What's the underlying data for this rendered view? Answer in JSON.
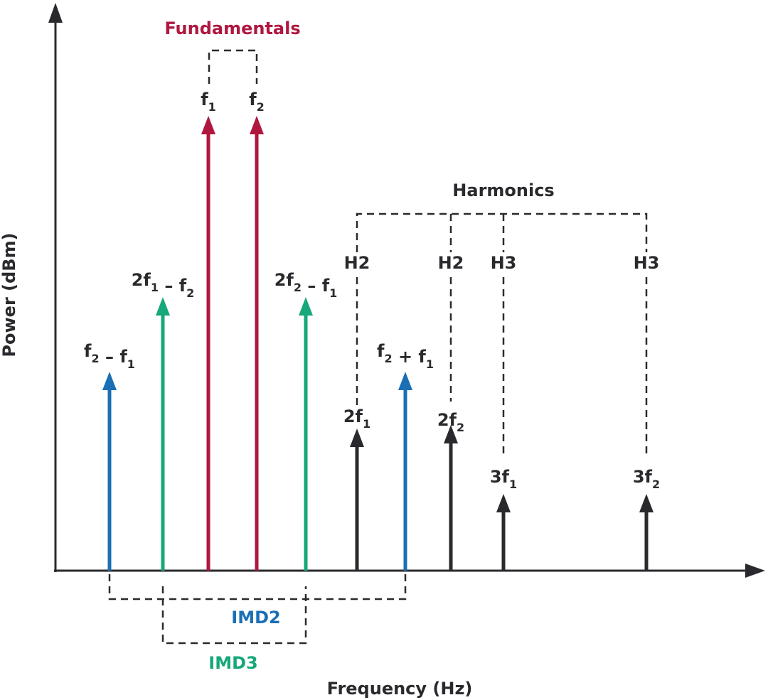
{
  "axes": {
    "y_label": "Power (dBm)",
    "x_label": "Frequency (Hz)"
  },
  "groups": {
    "fundamentals": "Fundamentals",
    "harmonics": "Harmonics",
    "imd2": "IMD2",
    "imd3": "IMD3"
  },
  "harmonic_tags": [
    "H2",
    "H2",
    "H3",
    "H3"
  ],
  "tones": [
    {
      "label": [
        [
          "f",
          "2"
        ],
        [
          " – f",
          "1"
        ]
      ]
    },
    {
      "label": [
        [
          "2f",
          "1"
        ],
        [
          " – f",
          "2"
        ]
      ]
    },
    {
      "label": [
        [
          "f",
          "1"
        ]
      ]
    },
    {
      "label": [
        [
          "f",
          "2"
        ]
      ]
    },
    {
      "label": [
        [
          "2f",
          "2"
        ],
        [
          " – f",
          "1"
        ]
      ]
    },
    {
      "label": [
        [
          "2f",
          "1"
        ]
      ]
    },
    {
      "label": [
        [
          "f",
          "2"
        ],
        [
          " + f",
          "1"
        ]
      ]
    },
    {
      "label": [
        [
          "2f",
          "2"
        ]
      ]
    },
    {
      "label": [
        [
          "3f",
          "1"
        ]
      ]
    },
    {
      "label": [
        [
          "3f",
          "2"
        ]
      ]
    }
  ]
}
